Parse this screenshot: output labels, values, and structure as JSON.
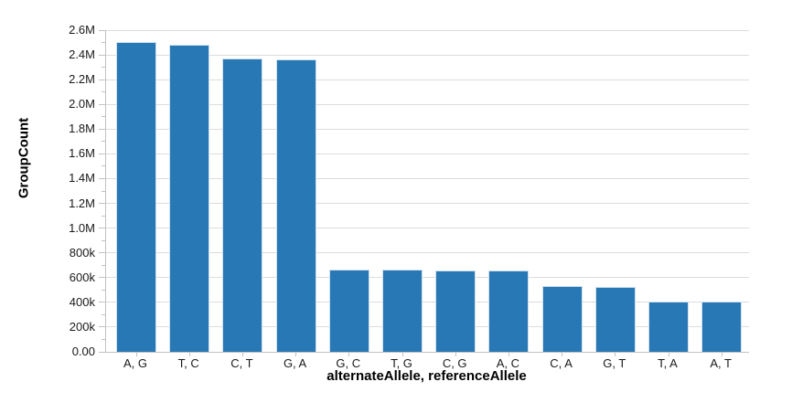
{
  "chart_data": {
    "type": "bar",
    "title": "",
    "xlabel": "alternateAllele, referenceAllele",
    "ylabel": "GroupCount",
    "categories": [
      "A, G",
      "T, C",
      "C, T",
      "G, A",
      "G, C",
      "T, G",
      "C, G",
      "A, C",
      "C, A",
      "G, T",
      "T, A",
      "A, T"
    ],
    "values": [
      2505000,
      2480000,
      2370000,
      2365000,
      666000,
      662000,
      660000,
      655000,
      530000,
      525000,
      407000,
      403000
    ],
    "ylim": [
      0,
      2600000
    ],
    "y_ticks": [
      {
        "value": 0,
        "label": "0.00"
      },
      {
        "value": 200000,
        "label": "200k"
      },
      {
        "value": 400000,
        "label": "400k"
      },
      {
        "value": 600000,
        "label": "600k"
      },
      {
        "value": 800000,
        "label": "800k"
      },
      {
        "value": 1000000,
        "label": "1.0M"
      },
      {
        "value": 1200000,
        "label": "1.2M"
      },
      {
        "value": 1400000,
        "label": "1.4M"
      },
      {
        "value": 1600000,
        "label": "1.6M"
      },
      {
        "value": 1800000,
        "label": "1.8M"
      },
      {
        "value": 2000000,
        "label": "2.0M"
      },
      {
        "value": 2200000,
        "label": "2.2M"
      },
      {
        "value": 2400000,
        "label": "2.4M"
      },
      {
        "value": 2600000,
        "label": "2.6M"
      }
    ],
    "minor_tick_step": 100000,
    "grid": true,
    "legend": "none",
    "colors": {
      "bar_fill": "#2878b5",
      "bar_edge": "#cfe0ee",
      "gridline": "#dcdcdc",
      "axis": "#c2c2c2",
      "text": "#1a1a1a"
    }
  }
}
